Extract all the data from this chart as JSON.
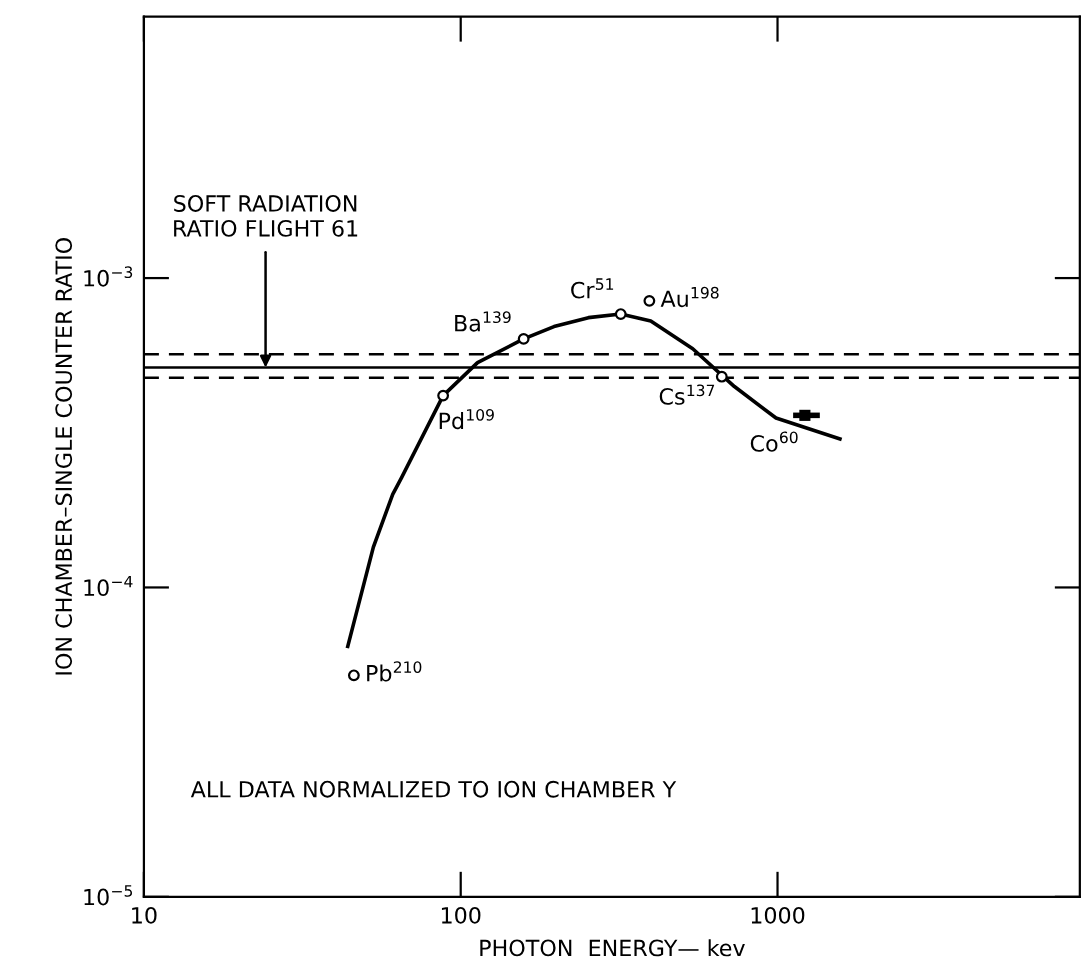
{
  "chart_data": {
    "type": "scatter",
    "xlabel": "PHOTON  ENERGY— kev",
    "ylabel": "ION CHAMBER–SINGLE COUNTER RATIO",
    "log": "xy",
    "xlim": [
      10,
      9000
    ],
    "ylim": [
      1e-05,
      0.007
    ],
    "xticks": [
      10,
      100,
      1000
    ],
    "yticks": [
      {
        "value": 1e-05,
        "label": "10$^{−5}$"
      },
      {
        "value": 0.0001,
        "label": "10$^{−4}$"
      },
      {
        "value": 0.001,
        "label": "10$^{−3}$"
      }
    ],
    "grid": false,
    "legend": false,
    "series": [
      {
        "type": "line",
        "color": "#000000",
        "marker": "none",
        "line_style": "solid",
        "x": [
          44,
          53,
          61,
          65,
          88,
          113,
          158,
          197,
          253,
          320,
          398,
          540,
          731,
          989,
          1574
        ],
        "values": [
          6.45e-05,
          0.000135,
          0.0002,
          0.000226,
          0.000417,
          0.000533,
          0.000636,
          0.000697,
          0.000745,
          0.000765,
          0.000727,
          0.000591,
          0.000446,
          0.000353,
          0.000302
        ]
      },
      {
        "color": "#000000",
        "marker": "circle",
        "x": [
          46,
          88,
          158,
          320,
          394,
          667
        ],
        "values": [
          5.2e-05,
          0.000417,
          0.000636,
          0.000765,
          0.000844,
          0.00048
        ]
      },
      {
        "color": "#000000",
        "marker": "square",
        "x": [
          1220
        ],
        "values": [
          0.00036
        ],
        "xerrors": [
          [
            1120,
            1360
          ]
        ]
      }
    ],
    "ref_lines": [
      {
        "axis": "y",
        "value": 0.000567,
        "line_style": "dashed",
        "color": "#000000"
      },
      {
        "axis": "y",
        "value": 0.000514,
        "line_style": "solid",
        "color": "#000000",
        "label": "SOFT RADIATION\nRATIO FLIGHT 61"
      },
      {
        "axis": "y",
        "value": 0.000476,
        "line_style": "dashed",
        "color": "#000000"
      }
    ],
    "annotations": [
      {
        "text": "Pb$^{210}$",
        "x": 46,
        "y": 5.2e-05
      },
      {
        "text": "Pd$^{109}$",
        "x": 88,
        "y": 0.000417
      },
      {
        "text": "Ba$^{139}$",
        "x": 158,
        "y": 0.000636
      },
      {
        "text": "Cr$^{51}$",
        "x": 320,
        "y": 0.000765
      },
      {
        "text": "Au$^{198}$",
        "x": 394,
        "y": 0.000844
      },
      {
        "text": "Cs$^{137}$",
        "x": 667,
        "y": 0.00048
      },
      {
        "text": "Co$^{60}$",
        "x": 1220,
        "y": 0.00036
      },
      "ALL DATA NORMALIZED TO ION CHAMBER Y"
    ]
  }
}
